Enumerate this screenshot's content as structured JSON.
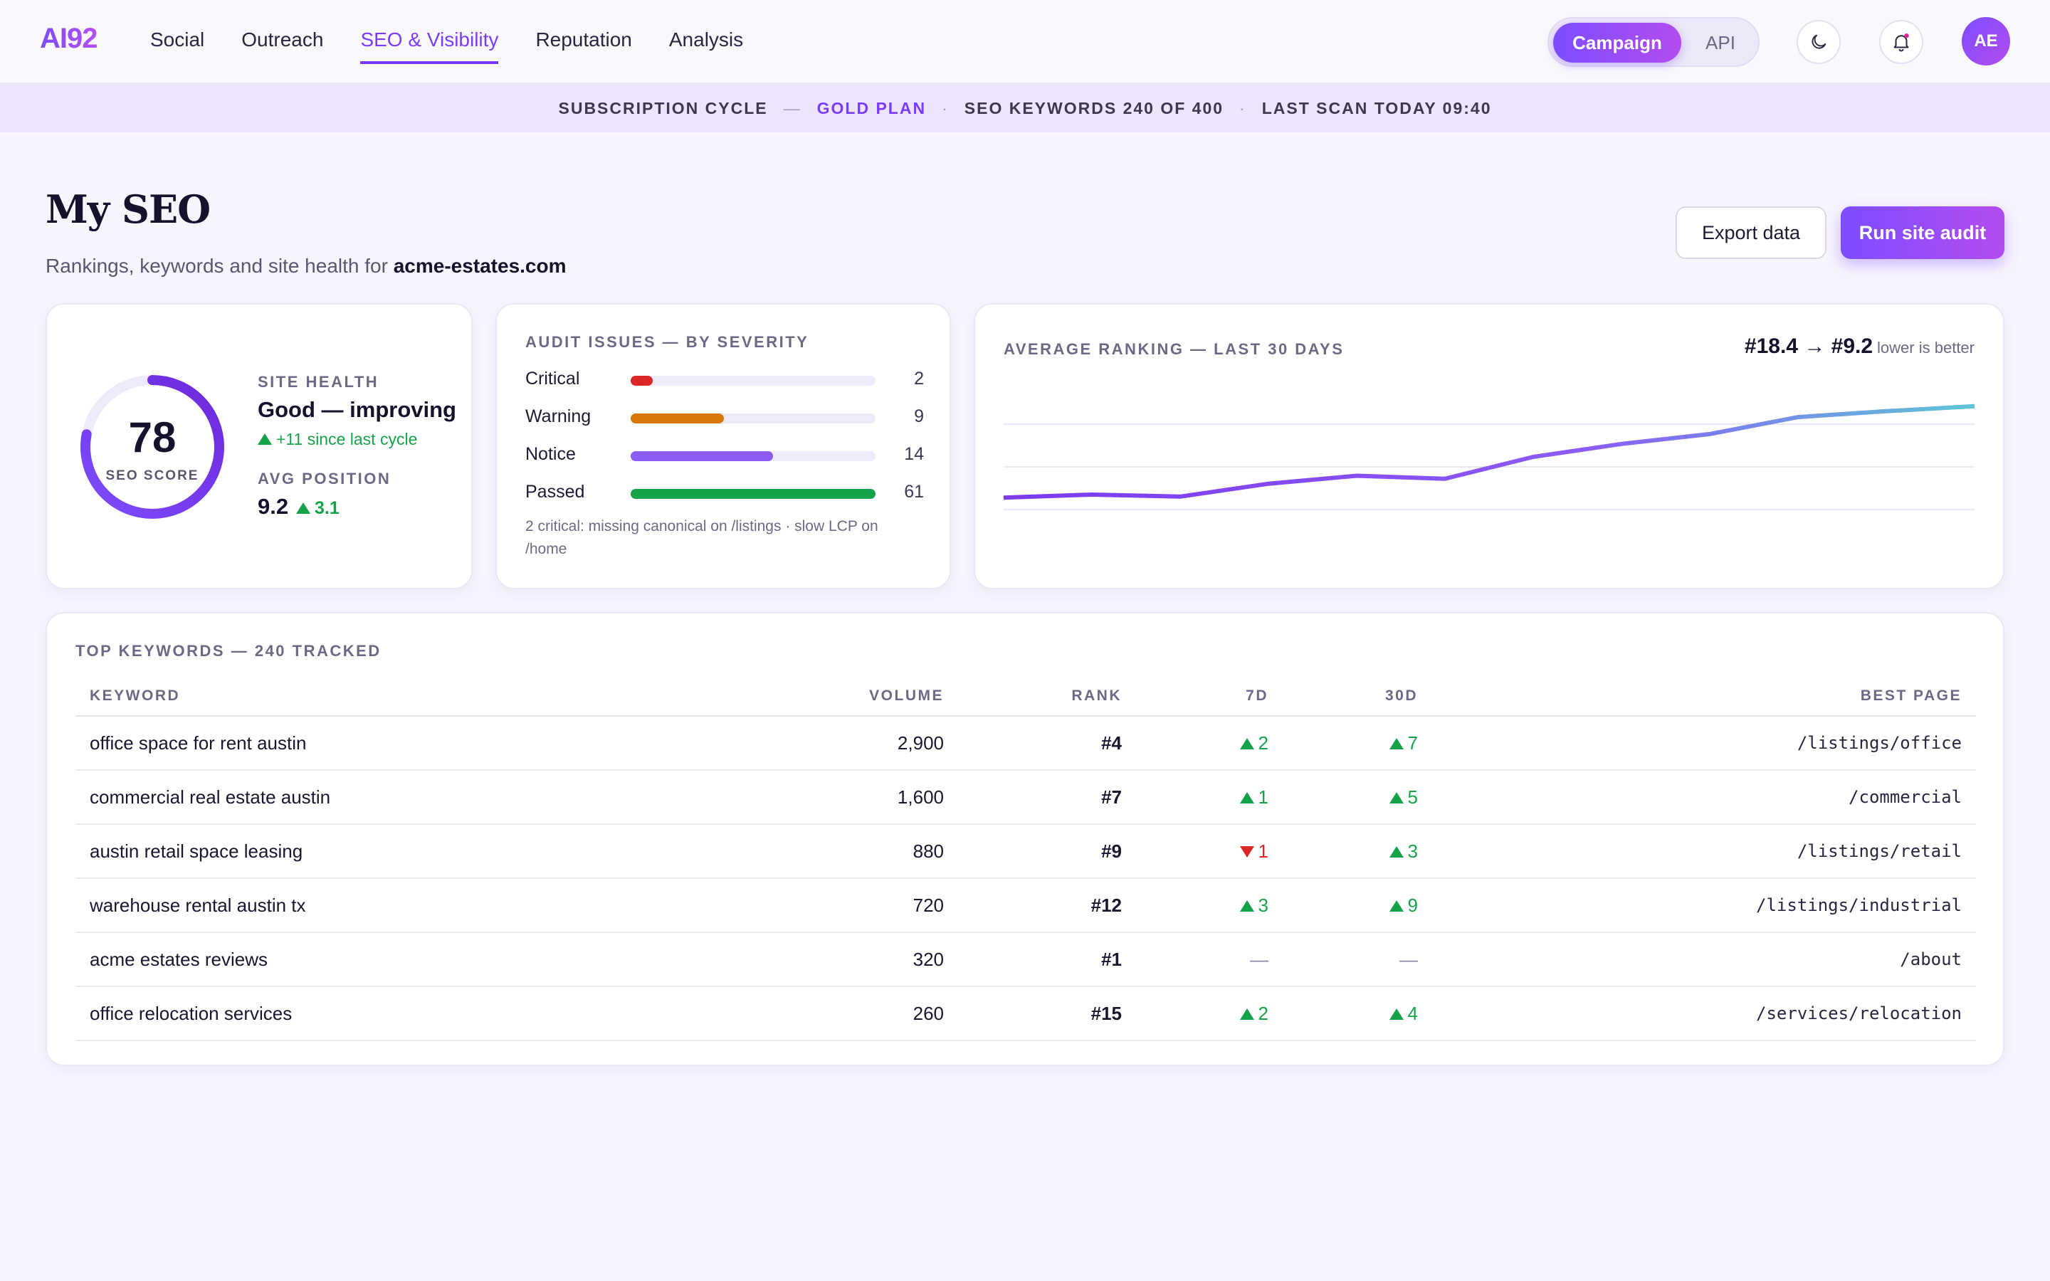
{
  "nav": {
    "logo": "AI92",
    "links": [
      "Social",
      "Outreach",
      "SEO & Visibility",
      "Reputation",
      "Analysis"
    ],
    "active": "SEO & Visibility",
    "segment": {
      "on": "Campaign",
      "off": "API"
    },
    "avatar": "AE"
  },
  "strip": {
    "cycle": "SUBSCRIPTION CYCLE",
    "plan": "GOLD PLAN",
    "keywords": "SEO KEYWORDS 240 OF 400",
    "scan": "LAST SCAN TODAY 09:40"
  },
  "header": {
    "title": "My SEO",
    "subtitle_prefix": "Rankings, keywords and site health for",
    "domain": "acme-estates.com",
    "export_label": "Export data",
    "run_label": "Run site audit"
  },
  "health": {
    "score": "78",
    "score_fraction": 0.78,
    "score_label": "SEO SCORE",
    "site_health_label": "SITE HEALTH",
    "site_health_value": "Good — improving",
    "site_health_delta": "+11 since last cycle",
    "avg_position_label": "AVG POSITION",
    "avg_position_value": "9.2",
    "avg_position_delta": "3.1"
  },
  "audit": {
    "title": "AUDIT ISSUES — BY SEVERITY",
    "rows": [
      {
        "label": "Critical",
        "count": "2",
        "fraction": 0.09,
        "color": "#dc2626"
      },
      {
        "label": "Warning",
        "count": "9",
        "fraction": 0.38,
        "color": "#d97706"
      },
      {
        "label": "Notice",
        "count": "14",
        "fraction": 0.58,
        "color": "#8b5cf6"
      },
      {
        "label": "Passed",
        "count": "61",
        "fraction": 1.0,
        "color": "#16a34a"
      }
    ],
    "note": "2 critical: missing canonical on /listings · slow LCP on /home"
  },
  "ranking": {
    "title": "AVERAGE RANKING — LAST 30 DAYS",
    "summary": "#18.4 → #9.2",
    "hint": "lower is better"
  },
  "chart_data": {
    "type": "line",
    "title": "AVERAGE RANKING — LAST 30 DAYS",
    "y_inverted": true,
    "series": [
      {
        "values": [
          18.4,
          18.1,
          18.3,
          17.0,
          16.2,
          16.5,
          14.3,
          13.0,
          12.0,
          10.3,
          9.7,
          9.2
        ]
      }
    ],
    "colors": [
      "#7c3aed",
      "#5ec5d6"
    ]
  },
  "keywords": {
    "title": "TOP KEYWORDS — 240 TRACKED",
    "columns": [
      "KEYWORD",
      "VOLUME",
      "RANK",
      "7D",
      "30D",
      "BEST PAGE"
    ],
    "rows": [
      {
        "keyword": "office space for rent austin",
        "volume": "2,900",
        "rank": "#4",
        "d7": "2",
        "d7_dir": "up",
        "d30": "7",
        "d30_dir": "up",
        "page": "/listings/office"
      },
      {
        "keyword": "commercial real estate austin",
        "volume": "1,600",
        "rank": "#7",
        "d7": "1",
        "d7_dir": "up",
        "d30": "5",
        "d30_dir": "up",
        "page": "/commercial"
      },
      {
        "keyword": "austin retail space leasing",
        "volume": "880",
        "rank": "#9",
        "d7": "1",
        "d7_dir": "down",
        "d30": "3",
        "d30_dir": "up",
        "page": "/listings/retail"
      },
      {
        "keyword": "warehouse rental austin tx",
        "volume": "720",
        "rank": "#12",
        "d7": "3",
        "d7_dir": "up",
        "d30": "9",
        "d30_dir": "up",
        "page": "/listings/industrial"
      },
      {
        "keyword": "acme estates reviews",
        "volume": "320",
        "rank": "#1",
        "d7": "—",
        "d7_dir": "flat",
        "d30": "—",
        "d30_dir": "flat",
        "page": "/about"
      },
      {
        "keyword": "office relocation services",
        "volume": "260",
        "rank": "#15",
        "d7": "2",
        "d7_dir": "up",
        "d30": "4",
        "d30_dir": "up",
        "page": "/services/relocation"
      }
    ]
  }
}
